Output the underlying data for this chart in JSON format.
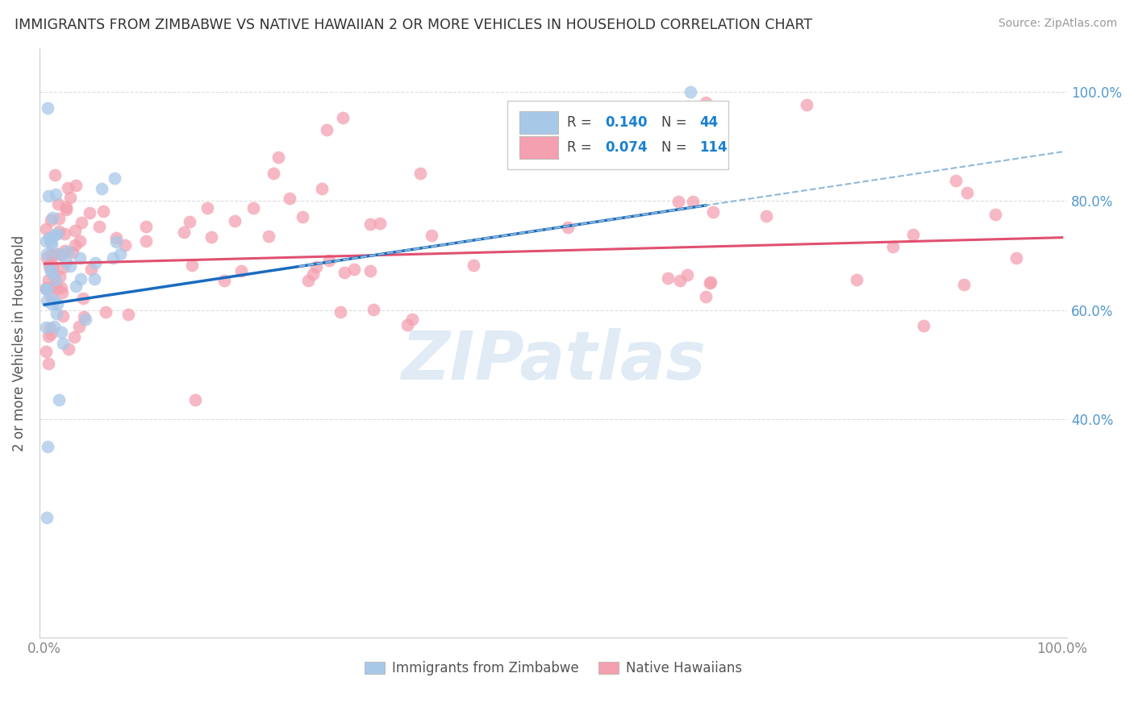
{
  "title": "IMMIGRANTS FROM ZIMBABWE VS NATIVE HAWAIIAN 2 OR MORE VEHICLES IN HOUSEHOLD CORRELATION CHART",
  "source": "Source: ZipAtlas.com",
  "ylabel": "2 or more Vehicles in Household",
  "blue_color": "#a8c8e8",
  "pink_color": "#f4a0b0",
  "blue_line_color": "#1a6bbf",
  "pink_line_color": "#e05070",
  "blue_dashed_color": "#90b8d8",
  "grid_color": "#dddddd",
  "title_color": "#333333",
  "source_color": "#999999",
  "right_tick_color": "#5599cc",
  "watermark_color": "#c8dced",
  "R_zim": 0.14,
  "N_zim": 44,
  "R_haw": 0.074,
  "N_haw": 114,
  "legend1_label": "Immigrants from Zimbabwe",
  "legend2_label": "Native Hawaiians",
  "zim_intercept": 0.61,
  "zim_slope": 0.28,
  "haw_intercept": 0.685,
  "haw_slope": 0.048
}
